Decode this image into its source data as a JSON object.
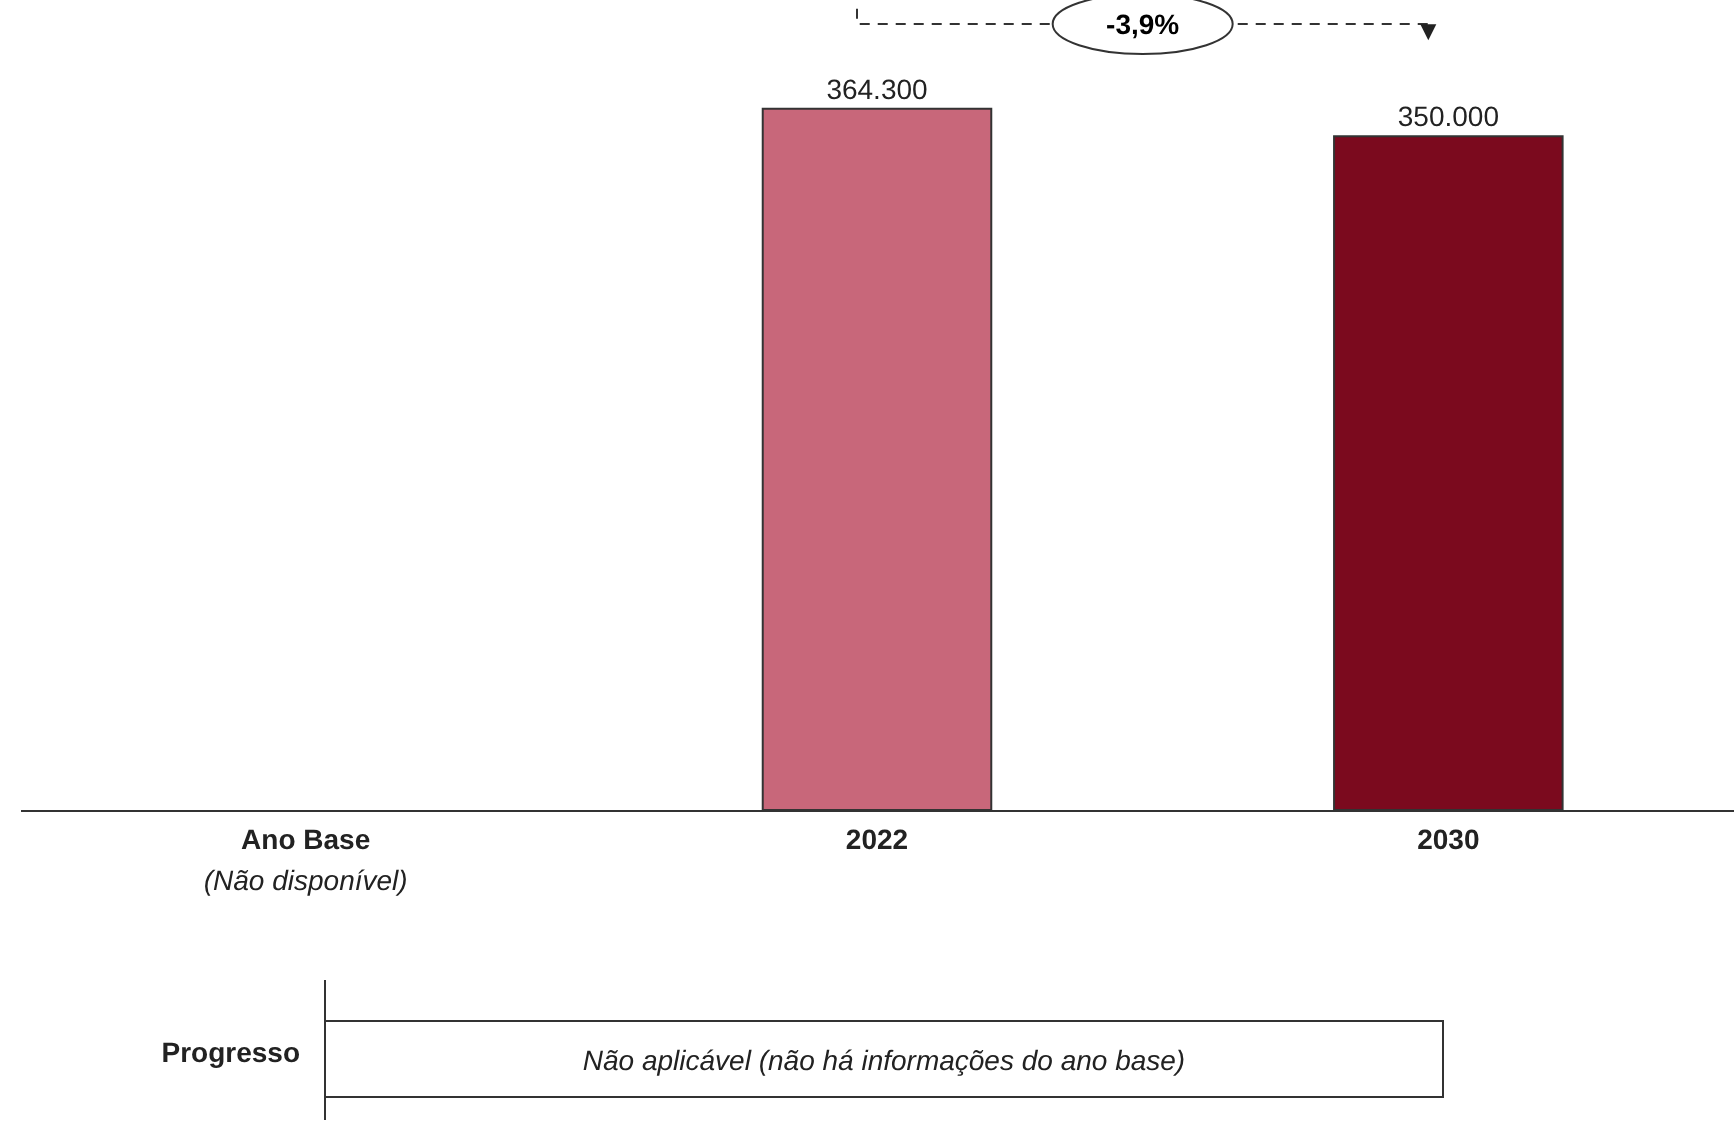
{
  "chart_data": {
    "type": "bar",
    "categories": [
      "Ano Base",
      "2022",
      "2030"
    ],
    "values": [
      null,
      364300,
      350000
    ],
    "colors": [
      "#c8677a",
      "#c8677a",
      "#7b0a1e"
    ],
    "value_labels": [
      null,
      "364.300",
      "350.000"
    ],
    "tick_labels": "x",
    "annotations": [
      "-3,9%",
      "(Não disponível)",
      "Progresso",
      "Não aplicável (não há informações do ano base)"
    ]
  }
}
